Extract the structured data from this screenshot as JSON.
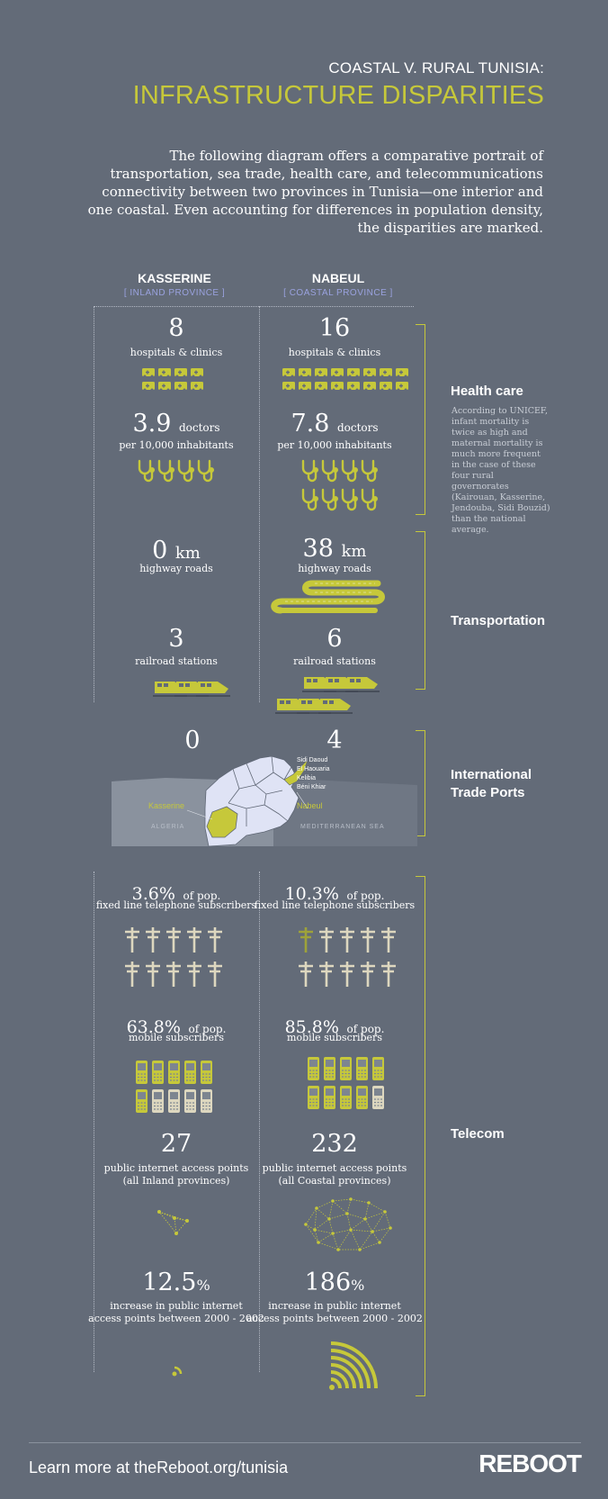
{
  "header": {
    "kicker": "COASTAL V. RURAL TUNISIA:",
    "title": "INFRASTRUCTURE DISPARITIES",
    "intro": "The following diagram offers a comparative portrait of transportation, sea trade, health care, and telecommunications connectivity between two provinces in Tunisia—one interior and one coastal. Even accounting for differences in population density, the disparities are marked."
  },
  "provinces": {
    "left": {
      "name": "KASSERINE",
      "type": "[ INLAND PROVINCE ]"
    },
    "right": {
      "name": "NABEUL",
      "type": "[ COASTAL PROVINCE ]"
    }
  },
  "health": {
    "category": "Health care",
    "note": "According to UNICEF, infant mortality is twice as high and maternal mortality is much more frequent in the case of these four rural governorates (Kairouan, Kasserine, Jendouba, Sidi Bouzid) than the national average.",
    "hospitals": {
      "left": "8",
      "right": "16",
      "label": "hospitals & clinics"
    },
    "doctors": {
      "left": "3.9",
      "right": "7.8",
      "unit": "doctors",
      "label": "per 10,000 inhabitants"
    }
  },
  "transport": {
    "category": "Transportation",
    "roads": {
      "left": "0",
      "right": "38",
      "unit": "km",
      "label": "highway roads"
    },
    "rail": {
      "left": "3",
      "right": "6",
      "label": "railroad stations"
    }
  },
  "ports": {
    "category_line1": "International",
    "category_line2": "Trade Ports",
    "left": "0",
    "right": "4",
    "map": {
      "ports": [
        "Sidi Daoud",
        "El Haouaria",
        "Kelibia",
        "Béni Khiar"
      ],
      "kasserine": "Kasserine",
      "nabeul": "Nabeul",
      "algeria": "ALGERIA",
      "sea": "MEDITERRANEAN SEA"
    }
  },
  "telecom": {
    "category": "Telecom",
    "fixed": {
      "left": "3.6%",
      "right": "10.3%",
      "suffix": "of pop.",
      "label": "fixed line telephone subscribers"
    },
    "mobile": {
      "left": "63.8%",
      "right": "85.8%",
      "suffix": "of pop.",
      "label": "mobile subscribers"
    },
    "access": {
      "left": "27",
      "right": "232",
      "label": "public internet access points",
      "left_note": "(all Inland provinces)",
      "right_note": "(all Coastal provinces)"
    },
    "increase": {
      "left": "12.5",
      "right": "186",
      "suffix": "%",
      "label_line1": "increase in public internet",
      "label_line2": "access points between 2000 - 2002"
    }
  },
  "colors": {
    "background": "#636b78",
    "accent": "#c6c83a",
    "map_land": "#dfe3f5",
    "map_gray": "#8a929e"
  },
  "footer": {
    "link_text": "Learn more at theReboot.org/tunisia",
    "logo": "REBOOT"
  }
}
